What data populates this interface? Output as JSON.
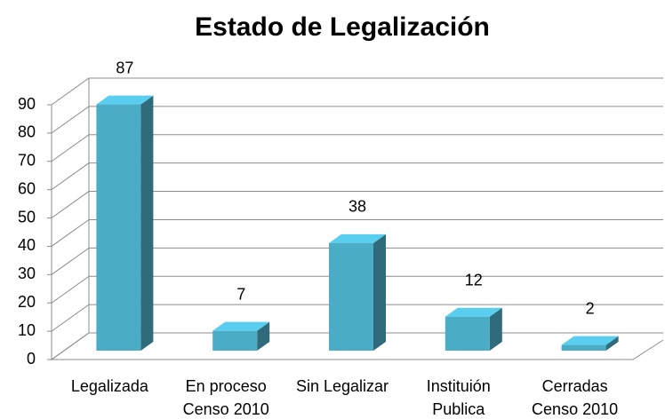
{
  "chart_data": {
    "type": "bar3d",
    "title": "Estado de Legalización",
    "categories": [
      "Legalizada",
      "En proceso\nCenso 2010",
      "Sin Legalizar",
      "Instituión\nPublica",
      "Cerradas\nCenso 2010"
    ],
    "values": [
      87,
      7,
      38,
      12,
      2
    ],
    "color": "#4bacc6",
    "ylim": [
      0,
      90
    ],
    "yticks": [
      0,
      10,
      20,
      30,
      40,
      50,
      60,
      70,
      80,
      90
    ],
    "grid": true
  }
}
